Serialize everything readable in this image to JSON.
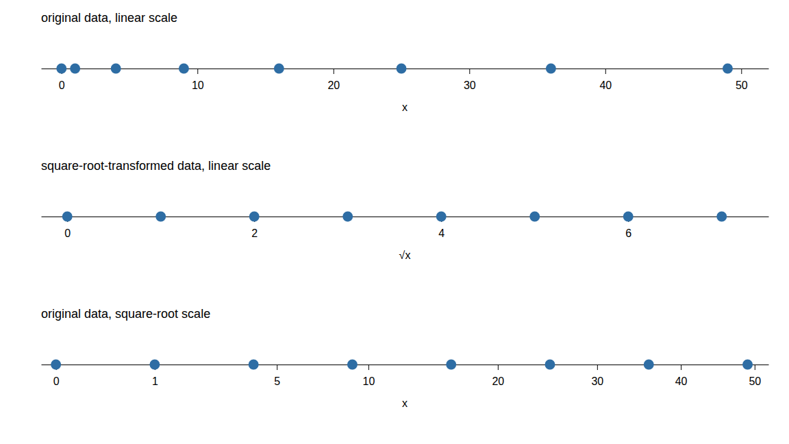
{
  "chart_data": [
    {
      "type": "strip",
      "title": "original data, linear scale",
      "x_label": "x",
      "values": [
        0,
        1,
        4,
        9,
        16,
        25,
        36,
        49
      ],
      "color": "#2e6da4",
      "xlim": [
        -1.5,
        52.0
      ],
      "xticks": [
        0,
        10,
        20,
        30,
        40,
        50
      ]
    },
    {
      "type": "strip",
      "title": "square-root-transformed data, linear scale",
      "x_label": "√x",
      "values": [
        0.0,
        1.0,
        2.0,
        3.0,
        4.0,
        5.0,
        6.0,
        7.0
      ],
      "color": "#2e6da4",
      "xlim": [
        -0.28,
        7.5
      ],
      "xticks": [
        0,
        2,
        4,
        6
      ]
    },
    {
      "type": "sqrt-strip",
      "title": "original data, square-root scale",
      "x_label": "x",
      "values": [
        0,
        1,
        4,
        9,
        16,
        25,
        36,
        49
      ],
      "color": "#2e6da4",
      "xlim": [
        -0.0225,
        52.0
      ],
      "xticks": [
        0,
        1,
        5,
        10,
        20,
        30,
        40,
        50
      ]
    }
  ]
}
